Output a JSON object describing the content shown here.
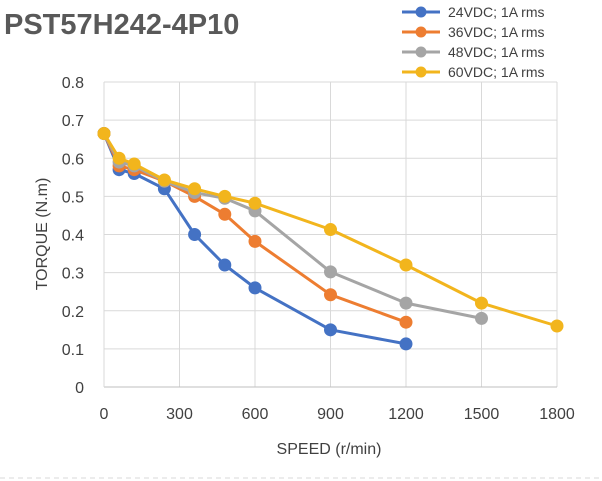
{
  "chart_data": {
    "type": "line",
    "title": "PST57H242-4P10",
    "xlabel": "SPEED (r/min)",
    "ylabel": "TORQUE (N.m)",
    "xlim": [
      0,
      1800
    ],
    "ylim": [
      0,
      0.8
    ],
    "x_ticks": [
      0,
      300,
      600,
      900,
      1200,
      1500,
      1800
    ],
    "y_ticks": [
      0,
      0.1,
      0.2,
      0.3,
      0.4,
      0.5,
      0.6,
      0.7,
      0.8
    ],
    "x_tick_labels": [
      "0",
      "300",
      "600",
      "900",
      "1200",
      "1500",
      "1800"
    ],
    "y_tick_labels": [
      "0",
      "0.1",
      "0.2",
      "0.3",
      "0.4",
      "0.5",
      "0.6",
      "0.7",
      "0.8"
    ],
    "grid": "both",
    "legend": "top-right",
    "series": [
      {
        "name": "24VDC; 1A rms",
        "color": "#4472C4",
        "points": [
          [
            0,
            0.665
          ],
          [
            60,
            0.57
          ],
          [
            120,
            0.56
          ],
          [
            240,
            0.52
          ],
          [
            360,
            0.4
          ],
          [
            480,
            0.32
          ],
          [
            600,
            0.26
          ],
          [
            900,
            0.15
          ],
          [
            1200,
            0.113
          ]
        ]
      },
      {
        "name": "36VDC; 1A rms",
        "color": "#ED7D31",
        "points": [
          [
            0,
            0.665
          ],
          [
            60,
            0.58
          ],
          [
            120,
            0.57
          ],
          [
            240,
            0.54
          ],
          [
            360,
            0.5
          ],
          [
            480,
            0.453
          ],
          [
            600,
            0.382
          ],
          [
            900,
            0.242
          ],
          [
            1200,
            0.17
          ]
        ]
      },
      {
        "name": "48VDC; 1A rms",
        "color": "#A5A5A5",
        "points": [
          [
            0,
            0.665
          ],
          [
            60,
            0.59
          ],
          [
            120,
            0.58
          ],
          [
            240,
            0.54
          ],
          [
            360,
            0.51
          ],
          [
            480,
            0.495
          ],
          [
            600,
            0.462
          ],
          [
            900,
            0.302
          ],
          [
            1200,
            0.22
          ],
          [
            1500,
            0.18
          ]
        ]
      },
      {
        "name": "60VDC; 1A rms",
        "color": "#F2B51D",
        "points": [
          [
            0,
            0.665
          ],
          [
            60,
            0.6
          ],
          [
            120,
            0.585
          ],
          [
            240,
            0.543
          ],
          [
            360,
            0.52
          ],
          [
            480,
            0.5
          ],
          [
            600,
            0.482
          ],
          [
            900,
            0.413
          ],
          [
            1200,
            0.32
          ],
          [
            1500,
            0.22
          ],
          [
            1800,
            0.16
          ]
        ]
      }
    ]
  }
}
